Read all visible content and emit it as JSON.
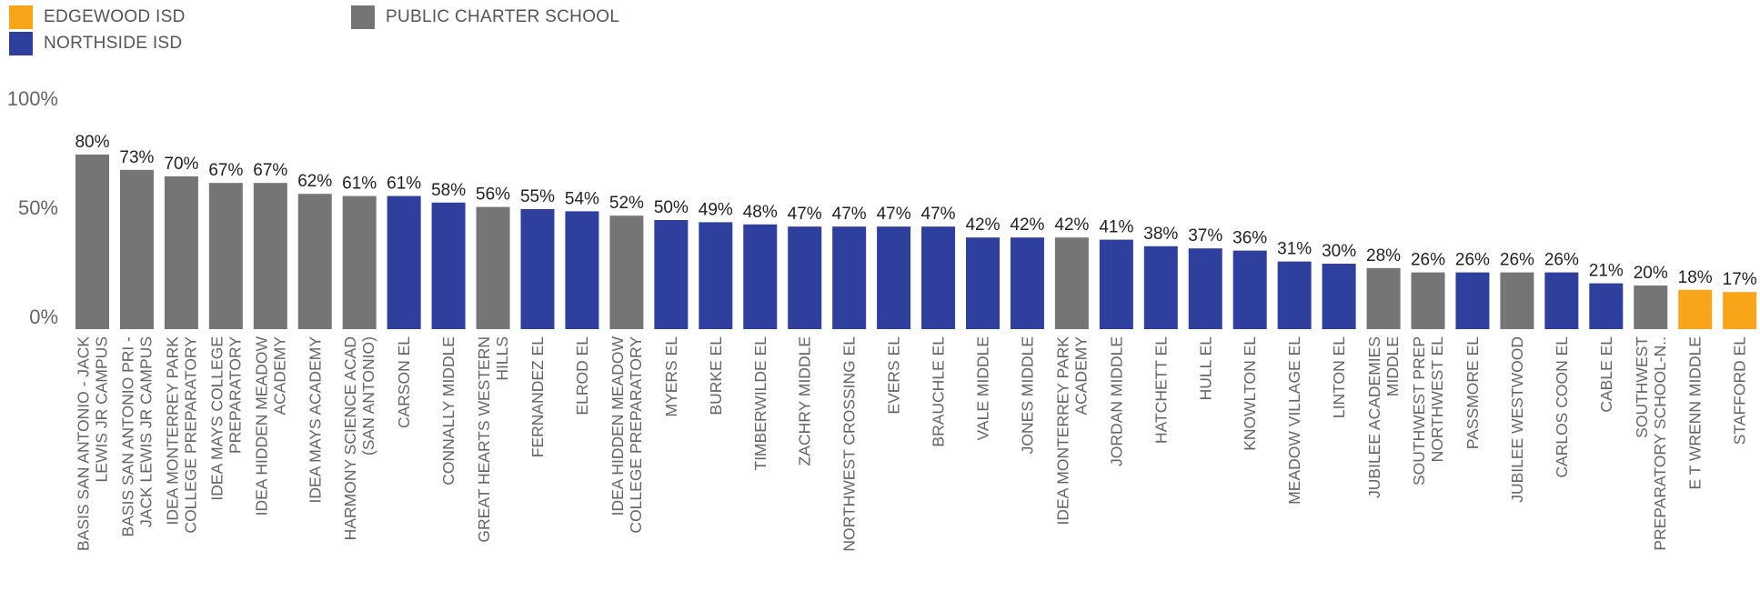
{
  "legend": [
    {
      "name": "EDGEWOOD ISD",
      "color": "#F9A51A"
    },
    {
      "name": "NORTHSIDE ISD",
      "color": "#2E3F9E"
    },
    {
      "name": "PUBLIC CHARTER SCHOOL",
      "color": "#757575"
    }
  ],
  "chart_data": {
    "type": "bar",
    "title": "",
    "xlabel": "",
    "ylabel": "",
    "ylim": [
      0,
      100
    ],
    "y_ticks": [
      "100%",
      "50%",
      "0%"
    ],
    "y_tick_values": [
      100,
      50,
      0
    ],
    "grid": false,
    "legend_position": "top-left",
    "categories": [
      "BASIS SAN ANTONIO - JACK LEWIS JR CAMPUS",
      "BASIS SAN ANTONIO PRI - JACK LEWIS JR CAMPUS",
      "IDEA MONTERREY PARK COLLEGE PREPARATORY",
      "IDEA MAYS COLLEGE PREPARATORY",
      "IDEA HIDDEN MEADOW ACADEMY",
      "IDEA MAYS ACADEMY",
      "HARMONY SCIENCE ACAD (SAN ANTONIO)",
      "CARSON EL",
      "CONNALLY MIDDLE",
      "GREAT HEARTS WESTERN HILLS",
      "FERNANDEZ EL",
      "ELROD EL",
      "IDEA HIDDEN MEADOW COLLEGE PREPARATORY",
      "MYERS EL",
      "BURKE EL",
      "TIMBERWILDE EL",
      "ZACHRY MIDDLE",
      "NORTHWEST CROSSING EL",
      "EVERS EL",
      "BRAUCHLE EL",
      "VALE MIDDLE",
      "JONES MIDDLE",
      "IDEA MONTERREY PARK ACADEMY",
      "JORDAN MIDDLE",
      "HATCHETT EL",
      "HULL EL",
      "KNOWLTON EL",
      "MEADOW VILLAGE EL",
      "LINTON EL",
      "JUBILEE ACADEMIES MIDDLE",
      "SOUTHWEST PREP NORTHWEST EL",
      "PASSMORE EL",
      "JUBILEE WESTWOOD",
      "CARLOS COON EL",
      "CABLE EL",
      "SOUTHWEST PREPARATORY SCHOOL-N..",
      "E T WRENN MIDDLE",
      "STAFFORD EL"
    ],
    "values": [
      80,
      73,
      70,
      67,
      67,
      62,
      61,
      61,
      58,
      56,
      55,
      54,
      52,
      50,
      49,
      48,
      47,
      47,
      47,
      47,
      42,
      42,
      42,
      41,
      38,
      37,
      36,
      31,
      30,
      28,
      26,
      26,
      26,
      26,
      21,
      20,
      18,
      17
    ],
    "value_labels": [
      "80%",
      "73%",
      "70%",
      "67%",
      "67%",
      "62%",
      "61%",
      "61%",
      "58%",
      "56%",
      "55%",
      "54%",
      "52%",
      "50%",
      "49%",
      "48%",
      "47%",
      "47%",
      "47%",
      "47%",
      "42%",
      "42%",
      "42%",
      "41%",
      "38%",
      "37%",
      "36%",
      "31%",
      "30%",
      "28%",
      "26%",
      "26%",
      "26%",
      "26%",
      "21%",
      "20%",
      "18%",
      "17%"
    ],
    "groups": [
      "PUBLIC CHARTER SCHOOL",
      "PUBLIC CHARTER SCHOOL",
      "PUBLIC CHARTER SCHOOL",
      "PUBLIC CHARTER SCHOOL",
      "PUBLIC CHARTER SCHOOL",
      "PUBLIC CHARTER SCHOOL",
      "PUBLIC CHARTER SCHOOL",
      "NORTHSIDE ISD",
      "NORTHSIDE ISD",
      "PUBLIC CHARTER SCHOOL",
      "NORTHSIDE ISD",
      "NORTHSIDE ISD",
      "PUBLIC CHARTER SCHOOL",
      "NORTHSIDE ISD",
      "NORTHSIDE ISD",
      "NORTHSIDE ISD",
      "NORTHSIDE ISD",
      "NORTHSIDE ISD",
      "NORTHSIDE ISD",
      "NORTHSIDE ISD",
      "NORTHSIDE ISD",
      "NORTHSIDE ISD",
      "PUBLIC CHARTER SCHOOL",
      "NORTHSIDE ISD",
      "NORTHSIDE ISD",
      "NORTHSIDE ISD",
      "NORTHSIDE ISD",
      "NORTHSIDE ISD",
      "NORTHSIDE ISD",
      "PUBLIC CHARTER SCHOOL",
      "PUBLIC CHARTER SCHOOL",
      "NORTHSIDE ISD",
      "PUBLIC CHARTER SCHOOL",
      "NORTHSIDE ISD",
      "NORTHSIDE ISD",
      "PUBLIC CHARTER SCHOOL",
      "EDGEWOOD ISD",
      "EDGEWOOD ISD"
    ],
    "label_lines": [
      [
        "BASIS SAN ANTONIO - JACK",
        "LEWIS JR CAMPUS"
      ],
      [
        "BASIS SAN ANTONIO PRI -",
        "JACK LEWIS JR CAMPUS"
      ],
      [
        "IDEA MONTERREY PARK",
        "COLLEGE PREPARATORY"
      ],
      [
        "IDEA MAYS COLLEGE",
        "PREPARATORY"
      ],
      [
        "IDEA HIDDEN MEADOW",
        "ACADEMY"
      ],
      [
        "IDEA MAYS ACADEMY"
      ],
      [
        "HARMONY SCIENCE ACAD",
        "(SAN ANTONIO)"
      ],
      [
        "CARSON EL"
      ],
      [
        "CONNALLY MIDDLE"
      ],
      [
        "GREAT HEARTS WESTERN",
        "HILLS"
      ],
      [
        "FERNANDEZ EL"
      ],
      [
        "ELROD EL"
      ],
      [
        "IDEA HIDDEN MEADOW",
        "COLLEGE PREPARATORY"
      ],
      [
        "MYERS EL"
      ],
      [
        "BURKE EL"
      ],
      [
        "TIMBERWILDE EL"
      ],
      [
        "ZACHRY MIDDLE"
      ],
      [
        "NORTHWEST CROSSING EL"
      ],
      [
        "EVERS EL"
      ],
      [
        "BRAUCHLE EL"
      ],
      [
        "VALE MIDDLE"
      ],
      [
        "JONES MIDDLE"
      ],
      [
        "IDEA MONTERREY PARK",
        "ACADEMY"
      ],
      [
        "JORDAN MIDDLE"
      ],
      [
        "HATCHETT EL"
      ],
      [
        "HULL EL"
      ],
      [
        "KNOWLTON EL"
      ],
      [
        "MEADOW VILLAGE EL"
      ],
      [
        "LINTON EL"
      ],
      [
        "JUBILEE ACADEMIES",
        "MIDDLE"
      ],
      [
        "SOUTHWEST PREP",
        "NORTHWEST EL"
      ],
      [
        "PASSMORE EL"
      ],
      [
        "JUBILEE WESTWOOD"
      ],
      [
        "CARLOS COON EL"
      ],
      [
        "CABLE EL"
      ],
      [
        "SOUTHWEST",
        "PREPARATORY SCHOOL-N.."
      ],
      [
        "E T WRENN MIDDLE"
      ],
      [
        "STAFFORD EL"
      ]
    ]
  }
}
